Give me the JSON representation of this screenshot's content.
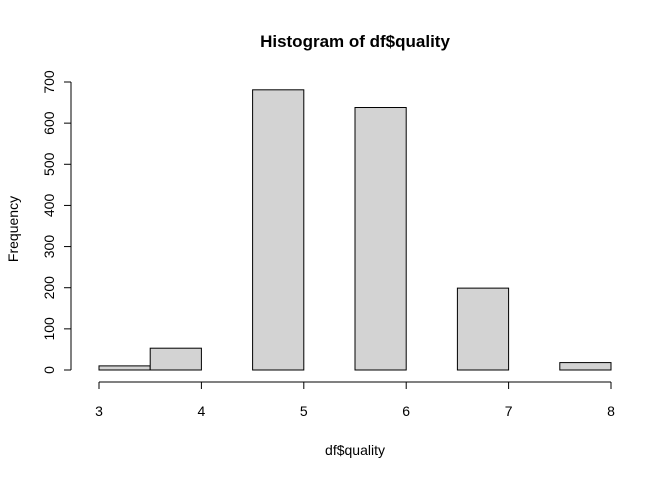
{
  "chart_data": {
    "type": "bar",
    "title": "Histogram of df$quality",
    "xlabel": "df$quality",
    "ylabel": "Frequency",
    "bins": [
      {
        "start": 3.0,
        "end": 3.5,
        "count": 10
      },
      {
        "start": 3.5,
        "end": 4.0,
        "count": 53
      },
      {
        "start": 4.0,
        "end": 4.5,
        "count": 0
      },
      {
        "start": 4.5,
        "end": 5.0,
        "count": 681
      },
      {
        "start": 5.0,
        "end": 5.5,
        "count": 0
      },
      {
        "start": 5.5,
        "end": 6.0,
        "count": 638
      },
      {
        "start": 6.0,
        "end": 6.5,
        "count": 0
      },
      {
        "start": 6.5,
        "end": 7.0,
        "count": 199
      },
      {
        "start": 7.0,
        "end": 7.5,
        "count": 0
      },
      {
        "start": 7.5,
        "end": 8.0,
        "count": 18
      }
    ],
    "xlim": [
      3,
      8
    ],
    "ylim": [
      0,
      700
    ],
    "x_ticks": [
      "3",
      "4",
      "5",
      "6",
      "7",
      "8"
    ],
    "y_ticks": [
      "0",
      "100",
      "200",
      "300",
      "400",
      "500",
      "600",
      "700"
    ],
    "bar_fill": "#d3d3d3",
    "bar_stroke": "#000000",
    "grid": false,
    "legend": "none"
  }
}
